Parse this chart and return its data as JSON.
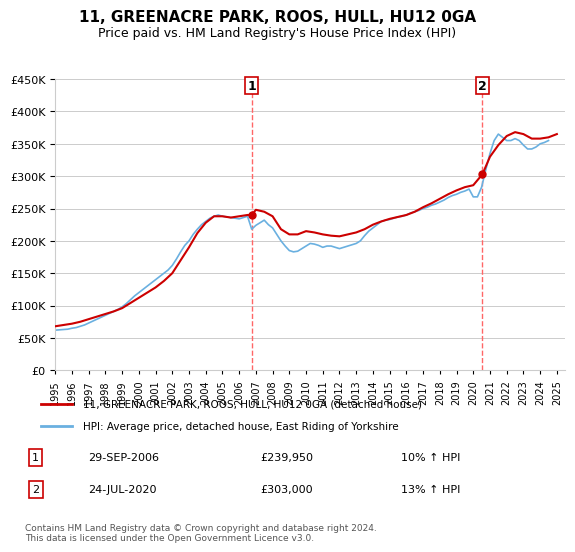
{
  "title": "11, GREENACRE PARK, ROOS, HULL, HU12 0GA",
  "subtitle": "Price paid vs. HM Land Registry's House Price Index (HPI)",
  "ylabel_ticks": [
    "£0",
    "£50K",
    "£100K",
    "£150K",
    "£200K",
    "£250K",
    "£300K",
    "£350K",
    "£400K",
    "£450K"
  ],
  "ylim": [
    0,
    450000
  ],
  "xlim_start": 1995.0,
  "xlim_end": 2025.5,
  "sale1_date": 2006.75,
  "sale1_price": 239950,
  "sale1_label": "1",
  "sale2_date": 2020.55,
  "sale2_price": 303000,
  "sale2_label": "2",
  "legend_line1": "11, GREENACRE PARK, ROOS, HULL, HU12 0GA (detached house)",
  "legend_line2": "HPI: Average price, detached house, East Riding of Yorkshire",
  "annotation1_date": "29-SEP-2006",
  "annotation1_price": "£239,950",
  "annotation1_hpi": "10% ↑ HPI",
  "annotation2_date": "24-JUL-2020",
  "annotation2_price": "£303,000",
  "annotation2_hpi": "13% ↑ HPI",
  "footer": "Contains HM Land Registry data © Crown copyright and database right 2024.\nThis data is licensed under the Open Government Licence v3.0.",
  "hpi_color": "#6ab0e0",
  "price_color": "#cc0000",
  "sale_marker_color": "#cc0000",
  "vline_color": "#ff6666",
  "grid_color": "#cccccc",
  "background_color": "#ffffff",
  "hpi_data_x": [
    1995.0,
    1995.25,
    1995.5,
    1995.75,
    1996.0,
    1996.25,
    1996.5,
    1996.75,
    1997.0,
    1997.25,
    1997.5,
    1997.75,
    1998.0,
    1998.25,
    1998.5,
    1998.75,
    1999.0,
    1999.25,
    1999.5,
    1999.75,
    2000.0,
    2000.25,
    2000.5,
    2000.75,
    2001.0,
    2001.25,
    2001.5,
    2001.75,
    2002.0,
    2002.25,
    2002.5,
    2002.75,
    2003.0,
    2003.25,
    2003.5,
    2003.75,
    2004.0,
    2004.25,
    2004.5,
    2004.75,
    2005.0,
    2005.25,
    2005.5,
    2005.75,
    2006.0,
    2006.25,
    2006.5,
    2006.75,
    2007.0,
    2007.25,
    2007.5,
    2007.75,
    2008.0,
    2008.25,
    2008.5,
    2008.75,
    2009.0,
    2009.25,
    2009.5,
    2009.75,
    2010.0,
    2010.25,
    2010.5,
    2010.75,
    2011.0,
    2011.25,
    2011.5,
    2011.75,
    2012.0,
    2012.25,
    2012.5,
    2012.75,
    2013.0,
    2013.25,
    2013.5,
    2013.75,
    2014.0,
    2014.25,
    2014.5,
    2014.75,
    2015.0,
    2015.25,
    2015.5,
    2015.75,
    2016.0,
    2016.25,
    2016.5,
    2016.75,
    2017.0,
    2017.25,
    2017.5,
    2017.75,
    2018.0,
    2018.25,
    2018.5,
    2018.75,
    2019.0,
    2019.25,
    2019.5,
    2019.75,
    2020.0,
    2020.25,
    2020.5,
    2020.75,
    2021.0,
    2021.25,
    2021.5,
    2021.75,
    2022.0,
    2022.25,
    2022.5,
    2022.75,
    2023.0,
    2023.25,
    2023.5,
    2023.75,
    2024.0,
    2024.25,
    2024.5
  ],
  "hpi_data_y": [
    62000,
    62500,
    63000,
    63500,
    65000,
    66000,
    68000,
    70000,
    73000,
    76000,
    79000,
    82000,
    85000,
    88000,
    91000,
    94000,
    98000,
    103000,
    109000,
    115000,
    120000,
    125000,
    130000,
    135000,
    140000,
    145000,
    150000,
    155000,
    162000,
    172000,
    183000,
    193000,
    200000,
    210000,
    218000,
    225000,
    230000,
    235000,
    238000,
    240000,
    238000,
    237000,
    236000,
    235000,
    234000,
    236000,
    238000,
    218000,
    224000,
    228000,
    232000,
    225000,
    220000,
    210000,
    200000,
    192000,
    185000,
    183000,
    184000,
    188000,
    192000,
    196000,
    195000,
    193000,
    190000,
    192000,
    192000,
    190000,
    188000,
    190000,
    192000,
    194000,
    196000,
    200000,
    208000,
    215000,
    220000,
    225000,
    230000,
    232000,
    233000,
    235000,
    237000,
    238000,
    240000,
    243000,
    245000,
    247000,
    250000,
    252000,
    255000,
    257000,
    260000,
    263000,
    267000,
    270000,
    272000,
    275000,
    277000,
    280000,
    268000,
    268000,
    283000,
    310000,
    335000,
    355000,
    365000,
    360000,
    355000,
    355000,
    358000,
    355000,
    348000,
    342000,
    342000,
    345000,
    350000,
    352000,
    355000
  ],
  "price_data_x": [
    1995.0,
    1995.5,
    1996.0,
    1996.5,
    1997.0,
    1997.5,
    1998.0,
    1998.5,
    1999.0,
    1999.5,
    2000.0,
    2000.5,
    2001.0,
    2001.5,
    2002.0,
    2002.5,
    2003.0,
    2003.5,
    2004.0,
    2004.5,
    2005.0,
    2005.5,
    2006.0,
    2006.5,
    2006.75,
    2007.0,
    2007.5,
    2008.0,
    2008.5,
    2009.0,
    2009.5,
    2010.0,
    2010.5,
    2011.0,
    2011.5,
    2012.0,
    2012.5,
    2013.0,
    2013.5,
    2014.0,
    2014.5,
    2015.0,
    2015.5,
    2016.0,
    2016.5,
    2017.0,
    2017.5,
    2018.0,
    2018.5,
    2019.0,
    2019.5,
    2020.0,
    2020.55,
    2021.0,
    2021.5,
    2022.0,
    2022.5,
    2023.0,
    2023.5,
    2024.0,
    2024.5,
    2025.0
  ],
  "price_data_y": [
    68000,
    70000,
    72000,
    75000,
    79000,
    83000,
    87000,
    91000,
    96000,
    104000,
    112000,
    120000,
    128000,
    138000,
    150000,
    170000,
    190000,
    212000,
    228000,
    238000,
    238000,
    236000,
    238000,
    240000,
    239950,
    248000,
    245000,
    238000,
    218000,
    210000,
    210000,
    215000,
    213000,
    210000,
    208000,
    207000,
    210000,
    213000,
    218000,
    225000,
    230000,
    234000,
    237000,
    240000,
    245000,
    252000,
    258000,
    265000,
    272000,
    278000,
    283000,
    286000,
    303000,
    330000,
    348000,
    362000,
    368000,
    365000,
    358000,
    358000,
    360000,
    365000
  ]
}
